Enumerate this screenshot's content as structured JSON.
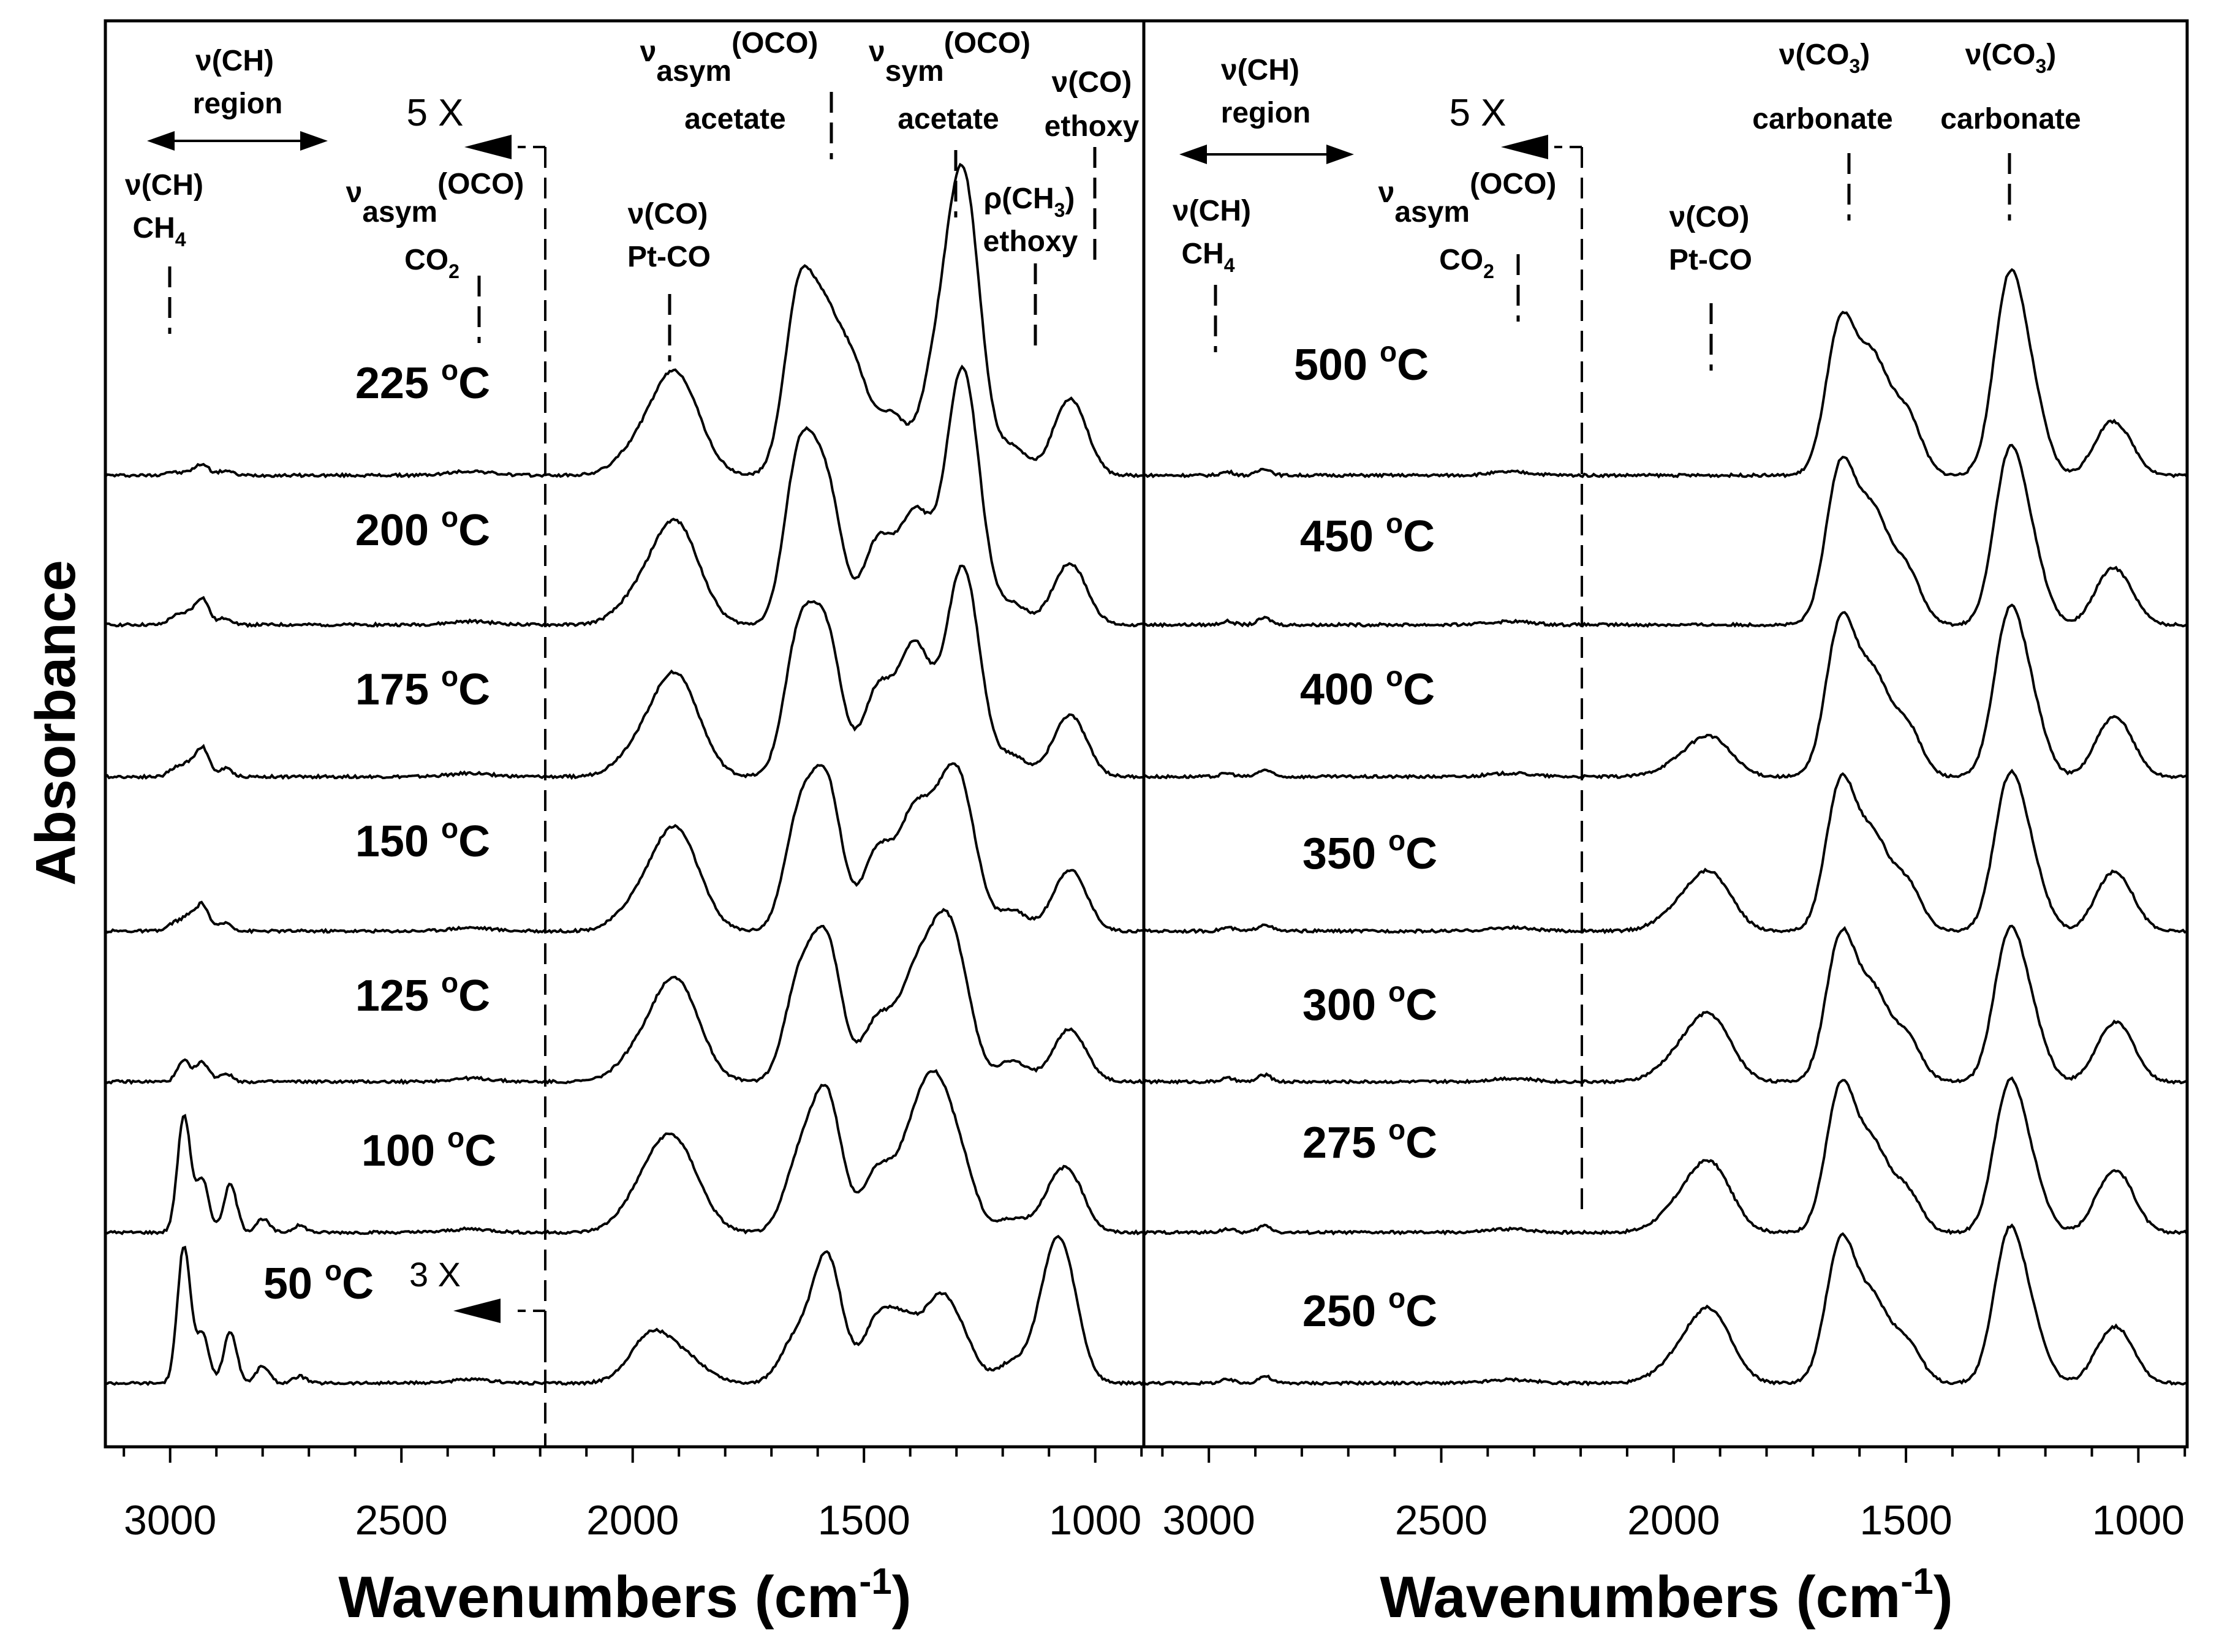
{
  "chart_data": [
    {
      "type": "line",
      "panel": "left",
      "xlabel": "Wavenumbers (cm",
      "xlabel_sup": "-1",
      "xlabel_close": ")",
      "ylabel": "Absorbance",
      "x_reversed": true,
      "xlim": [
        3140,
        895
      ],
      "xticks": [
        {
          "value": 3000,
          "label": "3000"
        },
        {
          "value": 2500,
          "label": "2500"
        },
        {
          "value": 2000,
          "label": "2000"
        },
        {
          "value": 1500,
          "label": "1500"
        },
        {
          "value": 1000,
          "label": "1000"
        }
      ],
      "break_wavenumber": 2200,
      "scale_labels": [
        {
          "text": "5 X",
          "applies_to": "100–225 °C traces, region > 2200 cm-1"
        },
        {
          "text": "3 X",
          "applies_to": "50 °C trace, region > 2200 cm-1"
        }
      ],
      "series": [
        {
          "label": "225",
          "peaks": [
            [
              3000,
              0.05
            ],
            [
              2960,
              0.05
            ],
            [
              2930,
              0.16
            ],
            [
              2880,
              0.07
            ],
            [
              2350,
              0.06
            ],
            [
              1990,
              0.35
            ],
            [
              1920,
              1.0
            ],
            [
              1880,
              0.6
            ],
            [
              1640,
              2.6
            ],
            [
              1580,
              1.9
            ],
            [
              1520,
              1.4
            ],
            [
              1440,
              0.85
            ],
            [
              1350,
              1.2
            ],
            [
              1300,
              2.55
            ],
            [
              1270,
              2.3
            ],
            [
              1180,
              0.4
            ],
            [
              1070,
              0.6
            ],
            [
              1040,
              0.65
            ]
          ]
        },
        {
          "label": "200",
          "peaks": [
            [
              2990,
              0.12
            ],
            [
              2960,
              0.16
            ],
            [
              2930,
              0.38
            ],
            [
              2880,
              0.1
            ],
            [
              2350,
              0.05
            ],
            [
              1990,
              0.35
            ],
            [
              1920,
              1.0
            ],
            [
              1880,
              0.6
            ],
            [
              1640,
              2.4
            ],
            [
              1580,
              1.9
            ],
            [
              1470,
              1.2
            ],
            [
              1400,
              1.05
            ],
            [
              1370,
              0.75
            ],
            [
              1300,
              2.25
            ],
            [
              1270,
              1.9
            ],
            [
              1180,
              0.3
            ],
            [
              1070,
              0.5
            ],
            [
              1040,
              0.5
            ]
          ]
        },
        {
          "label": "175",
          "peaks": [
            [
              2990,
              0.12
            ],
            [
              2960,
              0.18
            ],
            [
              2930,
              0.42
            ],
            [
              2880,
              0.12
            ],
            [
              2350,
              0.05
            ],
            [
              1990,
              0.35
            ],
            [
              1920,
              1.0
            ],
            [
              1880,
              0.6
            ],
            [
              1640,
              2.0
            ],
            [
              1580,
              1.95
            ],
            [
              1470,
              1.25
            ],
            [
              1400,
              1.3
            ],
            [
              1370,
              0.8
            ],
            [
              1300,
              1.8
            ],
            [
              1270,
              1.6
            ],
            [
              1180,
              0.3
            ],
            [
              1070,
              0.5
            ],
            [
              1040,
              0.5
            ]
          ]
        },
        {
          "label": "150",
          "peaks": [
            [
              2990,
              0.12
            ],
            [
              2960,
              0.2
            ],
            [
              2930,
              0.38
            ],
            [
              2880,
              0.12
            ],
            [
              2350,
              0.05
            ],
            [
              1990,
              0.35
            ],
            [
              1920,
              1.0
            ],
            [
              1880,
              0.6
            ],
            [
              1640,
              1.6
            ],
            [
              1580,
              2.05
            ],
            [
              1470,
              1.15
            ],
            [
              1400,
              1.15
            ],
            [
              1370,
              0.75
            ],
            [
              1320,
              1.5
            ],
            [
              1280,
              1.35
            ],
            [
              1180,
              0.3
            ],
            [
              1070,
              0.5
            ],
            [
              1040,
              0.5
            ]
          ]
        },
        {
          "label": "125",
          "peaks": [
            [
              2970,
              0.3
            ],
            [
              2930,
              0.28
            ],
            [
              2880,
              0.12
            ],
            [
              2350,
              0.05
            ],
            [
              1990,
              0.35
            ],
            [
              1920,
              1.0
            ],
            [
              1880,
              0.6
            ],
            [
              1640,
              1.4
            ],
            [
              1580,
              1.95
            ],
            [
              1470,
              0.9
            ],
            [
              1400,
              1.0
            ],
            [
              1370,
              0.65
            ],
            [
              1330,
              1.6
            ],
            [
              1290,
              1.1
            ],
            [
              1180,
              0.3
            ],
            [
              1070,
              0.45
            ],
            [
              1040,
              0.4
            ]
          ]
        },
        {
          "label": "100",
          "peaks": [
            [
              2970,
              1.7
            ],
            [
              2930,
              0.75
            ],
            [
              2870,
              0.7
            ],
            [
              2800,
              0.2
            ],
            [
              2720,
              0.1
            ],
            [
              2350,
              0.05
            ],
            [
              1990,
              0.35
            ],
            [
              1930,
              0.95
            ],
            [
              1880,
              0.6
            ],
            [
              1640,
              1.0
            ],
            [
              1580,
              1.95
            ],
            [
              1470,
              0.9
            ],
            [
              1400,
              0.95
            ],
            [
              1370,
              0.6
            ],
            [
              1340,
              1.5
            ],
            [
              1290,
              0.9
            ],
            [
              1180,
              0.2
            ],
            [
              1090,
              0.5
            ],
            [
              1050,
              0.65
            ]
          ]
        },
        {
          "label": "50",
          "peaks": [
            [
              2970,
              2.0
            ],
            [
              2930,
              0.7
            ],
            [
              2870,
              0.75
            ],
            [
              2800,
              0.25
            ],
            [
              2720,
              0.1
            ],
            [
              2350,
              0.05
            ],
            [
              1960,
              0.7
            ],
            [
              1880,
              0.3
            ],
            [
              1650,
              0.6
            ],
            [
              1580,
              1.85
            ],
            [
              1470,
              0.9
            ],
            [
              1410,
              0.8
            ],
            [
              1340,
              1.05
            ],
            [
              1290,
              0.6
            ],
            [
              1180,
              0.3
            ],
            [
              1100,
              1.05
            ],
            [
              1060,
              1.05
            ],
            [
              1080,
              0.4
            ]
          ]
        }
      ],
      "annotations": {
        "ch_region_1": "ν(CH)",
        "ch_region_2": "region",
        "ch4_1": "ν(CH)",
        "ch4_2": "CH",
        "co2_nu": "ν",
        "co2_asym": "asym",
        "co2_oco": "(OCO)",
        "co2_2": "CO",
        "ptco_1": "ν(CO)",
        "ptco_2": "Pt-CO",
        "asym_nu": "ν",
        "asym_sub": "asym",
        "asym_oco": "(OCO)",
        "asym_2": "acetate",
        "sym_nu": "ν",
        "sym_sub": "sym",
        "sym_oco": "(OCO)",
        "sym_2": "acetate",
        "rho_1": "ρ(CH",
        "rho_close": ")",
        "rho_2": "ethoxy",
        "co_eth_1": "ν(CO)",
        "co_eth_2": "ethoxy"
      }
    },
    {
      "type": "line",
      "panel": "right",
      "xlabel": "Wavenumbers (cm",
      "xlabel_sup": "-1",
      "xlabel_close": ")",
      "x_reversed": true,
      "xlim": [
        3140,
        895
      ],
      "xticks": [
        {
          "value": 3000,
          "label": "3000"
        },
        {
          "value": 2500,
          "label": "2500"
        },
        {
          "value": 2000,
          "label": "2000"
        },
        {
          "value": 1500,
          "label": "1500"
        },
        {
          "value": 1000,
          "label": "1000"
        }
      ],
      "break_wavenumber": 2200,
      "scale_labels": [
        {
          "text": "5 X",
          "applies_to": "all traces, region > 2200 cm-1"
        }
      ],
      "series": [
        {
          "label": "500",
          "peaks": [
            [
              2960,
              0.05
            ],
            [
              2880,
              0.1
            ],
            [
              2350,
              0.05
            ],
            [
              1640,
              2.2
            ],
            [
              1570,
              1.55
            ],
            [
              1500,
              0.9
            ],
            [
              1280,
              2.65
            ],
            [
              1230,
              1.0
            ],
            [
              1070,
              0.55
            ],
            [
              1030,
              0.4
            ]
          ]
        },
        {
          "label": "450",
          "peaks": [
            [
              2960,
              0.05
            ],
            [
              2880,
              0.1
            ],
            [
              2350,
              0.05
            ],
            [
              1640,
              2.3
            ],
            [
              1570,
              1.5
            ],
            [
              1500,
              0.8
            ],
            [
              1280,
              2.3
            ],
            [
              1230,
              0.9
            ],
            [
              1070,
              0.55
            ],
            [
              1030,
              0.45
            ]
          ]
        },
        {
          "label": "400",
          "peaks": [
            [
              2960,
              0.05
            ],
            [
              2880,
              0.1
            ],
            [
              2350,
              0.05
            ],
            [
              1990,
              0.15
            ],
            [
              1920,
              0.55
            ],
            [
              1640,
              2.25
            ],
            [
              1570,
              1.35
            ],
            [
              1500,
              0.75
            ],
            [
              1280,
              2.2
            ],
            [
              1230,
              0.85
            ],
            [
              1070,
              0.55
            ],
            [
              1030,
              0.5
            ]
          ]
        },
        {
          "label": "350",
          "peaks": [
            [
              2960,
              0.05
            ],
            [
              2880,
              0.1
            ],
            [
              2350,
              0.05
            ],
            [
              1990,
              0.25
            ],
            [
              1920,
              0.8
            ],
            [
              1640,
              2.15
            ],
            [
              1570,
              1.25
            ],
            [
              1500,
              0.7
            ],
            [
              1280,
              2.05
            ],
            [
              1230,
              0.8
            ],
            [
              1070,
              0.55
            ],
            [
              1030,
              0.5
            ]
          ]
        },
        {
          "label": "300",
          "peaks": [
            [
              2960,
              0.05
            ],
            [
              2880,
              0.1
            ],
            [
              2350,
              0.05
            ],
            [
              1990,
              0.3
            ],
            [
              1920,
              0.9
            ],
            [
              1640,
              2.1
            ],
            [
              1570,
              1.2
            ],
            [
              1500,
              0.65
            ],
            [
              1280,
              2.0
            ],
            [
              1230,
              0.75
            ],
            [
              1070,
              0.5
            ],
            [
              1030,
              0.55
            ]
          ]
        },
        {
          "label": "275",
          "peaks": [
            [
              2960,
              0.05
            ],
            [
              2880,
              0.1
            ],
            [
              2350,
              0.05
            ],
            [
              1990,
              0.3
            ],
            [
              1920,
              0.95
            ],
            [
              1640,
              2.1
            ],
            [
              1570,
              1.15
            ],
            [
              1500,
              0.6
            ],
            [
              1280,
              2.0
            ],
            [
              1230,
              0.7
            ],
            [
              1070,
              0.55
            ],
            [
              1030,
              0.55
            ]
          ]
        },
        {
          "label": "250",
          "peaks": [
            [
              2960,
              0.05
            ],
            [
              2880,
              0.1
            ],
            [
              2350,
              0.05
            ],
            [
              1990,
              0.3
            ],
            [
              1920,
              1.0
            ],
            [
              1640,
              2.05
            ],
            [
              1570,
              1.1
            ],
            [
              1500,
              0.6
            ],
            [
              1280,
              2.05
            ],
            [
              1230,
              0.7
            ],
            [
              1070,
              0.5
            ],
            [
              1030,
              0.5
            ]
          ]
        }
      ],
      "annotations": {
        "ch_region_1": "ν(CH)",
        "ch_region_2": "region",
        "ch4_1": "ν(CH)",
        "ch4_2": "CH",
        "co2_nu": "ν",
        "co2_asym": "asym",
        "co2_oco": "(OCO)",
        "co2_2": "CO",
        "ptco_1": "ν(CO)",
        "ptco_2": "Pt-CO",
        "carb1_1": "ν(CO",
        "carb1_close": ")",
        "carb1_2": "carbonate",
        "carb2_1": "ν(CO",
        "carb2_close": ")",
        "carb2_2": "carbonate"
      }
    }
  ],
  "subscripts": {
    "four": "4",
    "two": "2",
    "three": "3"
  },
  "temperature_unit": "°C"
}
